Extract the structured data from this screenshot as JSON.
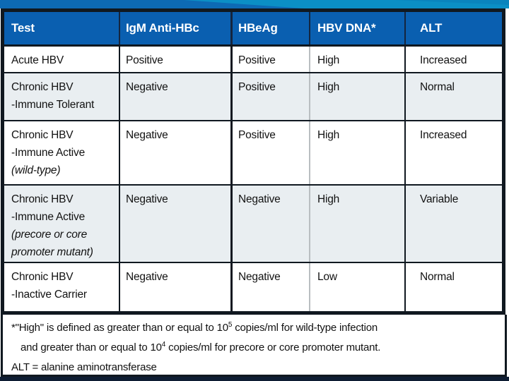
{
  "colors": {
    "header_bg": "#0a5fb0",
    "header_text": "#ffffff",
    "row_bg": "#ffffff",
    "row_alt_bg": "#e9eef1",
    "body_text": "#121212",
    "line_dark": "#101820",
    "line_gray": "#b9bec1",
    "band_blue": "#0d6ab4",
    "band_teal": "#0b8fc5",
    "band_teal_dark": "#0a84bd",
    "bottom_strip": "#0e1d33"
  },
  "table": {
    "columns": [
      "Test",
      "IgM Anti-HBc",
      "HBeAg",
      "HBV DNA*",
      "ALT"
    ],
    "rows": [
      {
        "test": [
          {
            "text": "Acute HBV",
            "italic": false
          }
        ],
        "cells": [
          "Positive",
          "Positive",
          "High",
          "Increased"
        ],
        "shaded": false
      },
      {
        "test": [
          {
            "text": "Chronic HBV",
            "italic": false
          },
          {
            "text": "-Immune Tolerant",
            "italic": false
          }
        ],
        "cells": [
          "Negative",
          "Positive",
          "High",
          "Normal"
        ],
        "shaded": true
      },
      {
        "test": [
          {
            "text": "Chronic HBV",
            "italic": false
          },
          {
            "text": "-Immune Active",
            "italic": false
          },
          {
            "text": "(wild-type)",
            "italic": true
          }
        ],
        "cells": [
          "Negative",
          "Positive",
          "High",
          "Increased"
        ],
        "shaded": false
      },
      {
        "test": [
          {
            "text": "Chronic HBV",
            "italic": false
          },
          {
            "text": "-Immune Active",
            "italic": false
          },
          {
            "text": "(precore or core",
            "italic": true
          },
          {
            "text": "promoter mutant)",
            "italic": true
          }
        ],
        "cells": [
          "Negative",
          "Negative",
          "High",
          "Variable"
        ],
        "shaded": true
      },
      {
        "test": [
          {
            "text": "Chronic HBV",
            "italic": false
          },
          {
            "text": "-Inactive Carrier",
            "italic": false
          }
        ],
        "cells": [
          "Negative",
          "Negative",
          "Low",
          "Normal"
        ],
        "shaded": false
      }
    ]
  },
  "footnote": {
    "lines": [
      {
        "pre": "*\"High\" is defined as greater than or equal to 10",
        "sup": "5",
        "post": " copies/ml for wild-type infection",
        "indent": false
      },
      {
        "pre": "and greater than or equal to 10",
        "sup": "4",
        "post": " copies/ml for precore or core promoter mutant.",
        "indent": true
      },
      {
        "pre": "ALT = alanine aminotransferase",
        "sup": "",
        "post": "",
        "indent": false
      }
    ]
  }
}
